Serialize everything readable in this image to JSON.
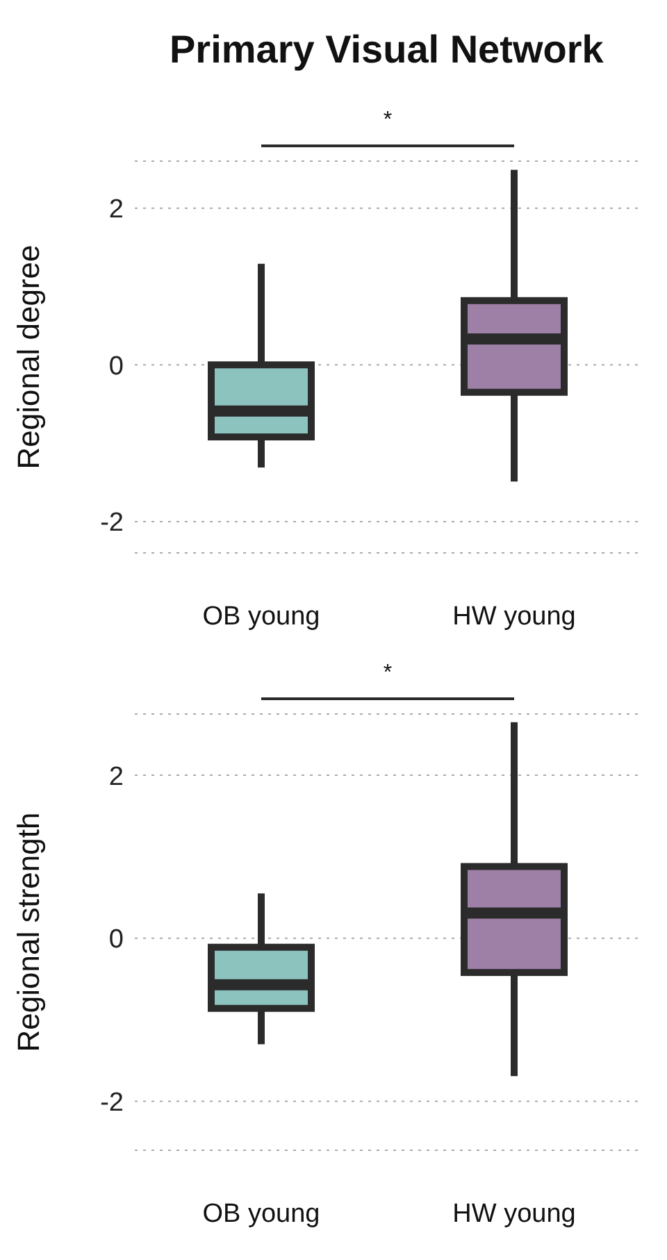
{
  "chart_data": [
    {
      "type": "box",
      "title": "Primary Visual Network",
      "ylabel": "Regional degree",
      "categories": [
        "OB young",
        "HW young"
      ],
      "colors": [
        "#8cc3bf",
        "#9e7fa6"
      ],
      "boxes": [
        {
          "low": -1.31,
          "q1": -0.92,
          "median": -0.59,
          "q3": 0.0,
          "high": 1.29
        },
        {
          "low": -1.49,
          "q1": -0.35,
          "median": 0.33,
          "q3": 0.82,
          "high": 2.49
        }
      ],
      "ylim": [
        -2.4,
        2.6
      ],
      "yticks": [
        -2,
        0,
        2
      ],
      "grid": "y",
      "annotations": [
        "*"
      ]
    },
    {
      "type": "box",
      "ylabel": "Regional strength",
      "categories": [
        "OB young",
        "HW young"
      ],
      "colors": [
        "#8cc3bf",
        "#9e7fa6"
      ],
      "boxes": [
        {
          "low": -1.3,
          "q1": -0.86,
          "median": -0.57,
          "q3": -0.11,
          "high": 0.55
        },
        {
          "low": -1.69,
          "q1": -0.42,
          "median": 0.31,
          "q3": 0.88,
          "high": 2.65
        }
      ],
      "ylim": [
        -2.6,
        2.75
      ],
      "yticks": [
        -2,
        0,
        2
      ],
      "grid": "y",
      "annotations": [
        "*"
      ]
    }
  ]
}
